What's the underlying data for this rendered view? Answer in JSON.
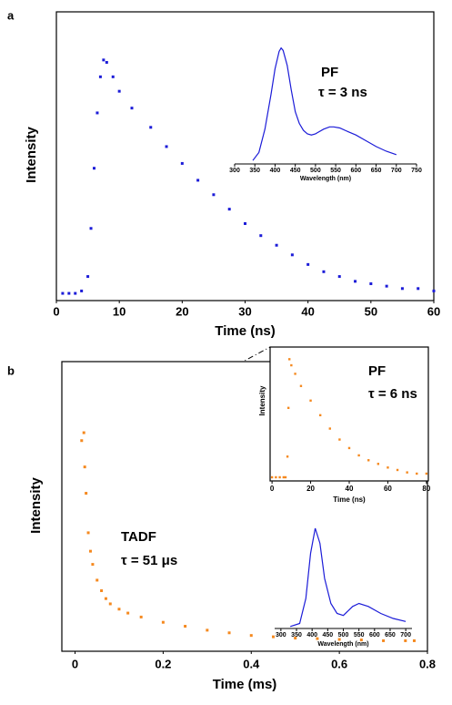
{
  "chart_data": [
    {
      "type": "scatter",
      "panel_label": "a",
      "x_label": "Time (ns)",
      "y_label": "Intensity",
      "color": "#1c1cd8",
      "x": [
        1,
        2,
        3,
        4,
        5,
        5.5,
        6,
        6.5,
        7,
        7.5,
        8,
        9,
        10,
        12,
        15,
        17.5,
        20,
        22.5,
        25,
        27.5,
        30,
        32.5,
        35,
        37.5,
        40,
        42.5,
        45,
        47.5,
        50,
        52.5,
        55,
        57.5,
        60
      ],
      "values": [
        0.03,
        0.03,
        0.03,
        0.04,
        0.1,
        0.3,
        0.55,
        0.78,
        0.93,
        1.0,
        0.99,
        0.93,
        0.87,
        0.8,
        0.72,
        0.64,
        0.57,
        0.5,
        0.44,
        0.38,
        0.32,
        0.27,
        0.23,
        0.19,
        0.15,
        0.12,
        0.1,
        0.08,
        0.07,
        0.06,
        0.05,
        0.05,
        0.04
      ],
      "xlim": [
        0,
        60
      ],
      "xticks": [
        0,
        10,
        20,
        30,
        40,
        50,
        60
      ],
      "ylim": [
        0,
        1.2
      ]
    },
    {
      "type": "line",
      "x_label": "Wavelength (nm)",
      "annotations": [
        "PF",
        "τ = 3 ns"
      ],
      "color": "#1c1cd8",
      "x": [
        345,
        360,
        375,
        390,
        400,
        410,
        415,
        420,
        430,
        440,
        450,
        460,
        470,
        480,
        490,
        500,
        505,
        520,
        535,
        545,
        560,
        580,
        600,
        625,
        650,
        675,
        700
      ],
      "values": [
        0.03,
        0.1,
        0.3,
        0.6,
        0.82,
        0.97,
        1.0,
        0.98,
        0.85,
        0.64,
        0.45,
        0.35,
        0.29,
        0.26,
        0.25,
        0.26,
        0.27,
        0.3,
        0.32,
        0.32,
        0.31,
        0.28,
        0.25,
        0.2,
        0.15,
        0.11,
        0.08
      ],
      "xlim": [
        300,
        750
      ],
      "xticks": [
        300,
        350,
        400,
        450,
        500,
        550,
        600,
        650,
        700,
        750
      ],
      "ylim": [
        0,
        1.1
      ]
    },
    {
      "type": "scatter",
      "panel_label": "b",
      "x_label": "Time (ms)",
      "y_label": "Intensity",
      "annotations": [
        "TADF",
        "τ = 51 μs"
      ],
      "color": "#f5891f",
      "x": [
        0.015,
        0.02,
        0.022,
        0.025,
        0.03,
        0.035,
        0.04,
        0.05,
        0.06,
        0.07,
        0.08,
        0.1,
        0.12,
        0.15,
        0.2,
        0.25,
        0.3,
        0.35,
        0.4,
        0.45,
        0.5,
        0.55,
        0.6,
        0.65,
        0.7,
        0.75,
        0.77
      ],
      "values": [
        0.8,
        0.83,
        0.7,
        0.6,
        0.45,
        0.38,
        0.33,
        0.27,
        0.23,
        0.2,
        0.18,
        0.16,
        0.145,
        0.13,
        0.11,
        0.095,
        0.08,
        0.07,
        0.06,
        0.055,
        0.05,
        0.048,
        0.045,
        0.043,
        0.04,
        0.04,
        0.04
      ],
      "xlim": [
        -0.03,
        0.8
      ],
      "xticks": [
        0,
        0.2,
        0.4,
        0.6,
        0.8
      ],
      "ylim": [
        0,
        1.1
      ]
    },
    {
      "type": "scatter",
      "x_label": "Time (ns)",
      "y_label": "Intensity",
      "annotations": [
        "PF",
        "τ = 6 ns"
      ],
      "color": "#f5891f",
      "x": [
        0,
        2,
        4,
        6,
        7,
        8,
        8.5,
        9,
        10,
        12,
        15,
        20,
        25,
        30,
        35,
        40,
        45,
        50,
        55,
        60,
        65,
        70,
        75,
        80
      ],
      "values": [
        0.03,
        0.03,
        0.03,
        0.03,
        0.03,
        0.2,
        0.6,
        1.0,
        0.95,
        0.88,
        0.78,
        0.66,
        0.54,
        0.43,
        0.34,
        0.27,
        0.21,
        0.17,
        0.14,
        0.11,
        0.09,
        0.07,
        0.06,
        0.06
      ],
      "xlim": [
        -1,
        81
      ],
      "xticks": [
        0,
        20,
        40,
        60,
        80
      ],
      "ylim": [
        0,
        1.1
      ]
    },
    {
      "type": "line",
      "x_label": "Wavelength (nm)",
      "color": "#1c1cd8",
      "x": [
        330,
        360,
        380,
        395,
        410,
        425,
        440,
        460,
        480,
        500,
        530,
        550,
        580,
        620,
        660,
        700
      ],
      "values": [
        0.02,
        0.05,
        0.3,
        0.75,
        1.0,
        0.85,
        0.5,
        0.25,
        0.15,
        0.13,
        0.22,
        0.25,
        0.22,
        0.15,
        0.1,
        0.07
      ],
      "xlim": [
        280,
        720
      ],
      "xticks": [
        300,
        350,
        400,
        450,
        500,
        550,
        600,
        650,
        700
      ],
      "ylim": [
        0,
        1.1
      ]
    }
  ]
}
